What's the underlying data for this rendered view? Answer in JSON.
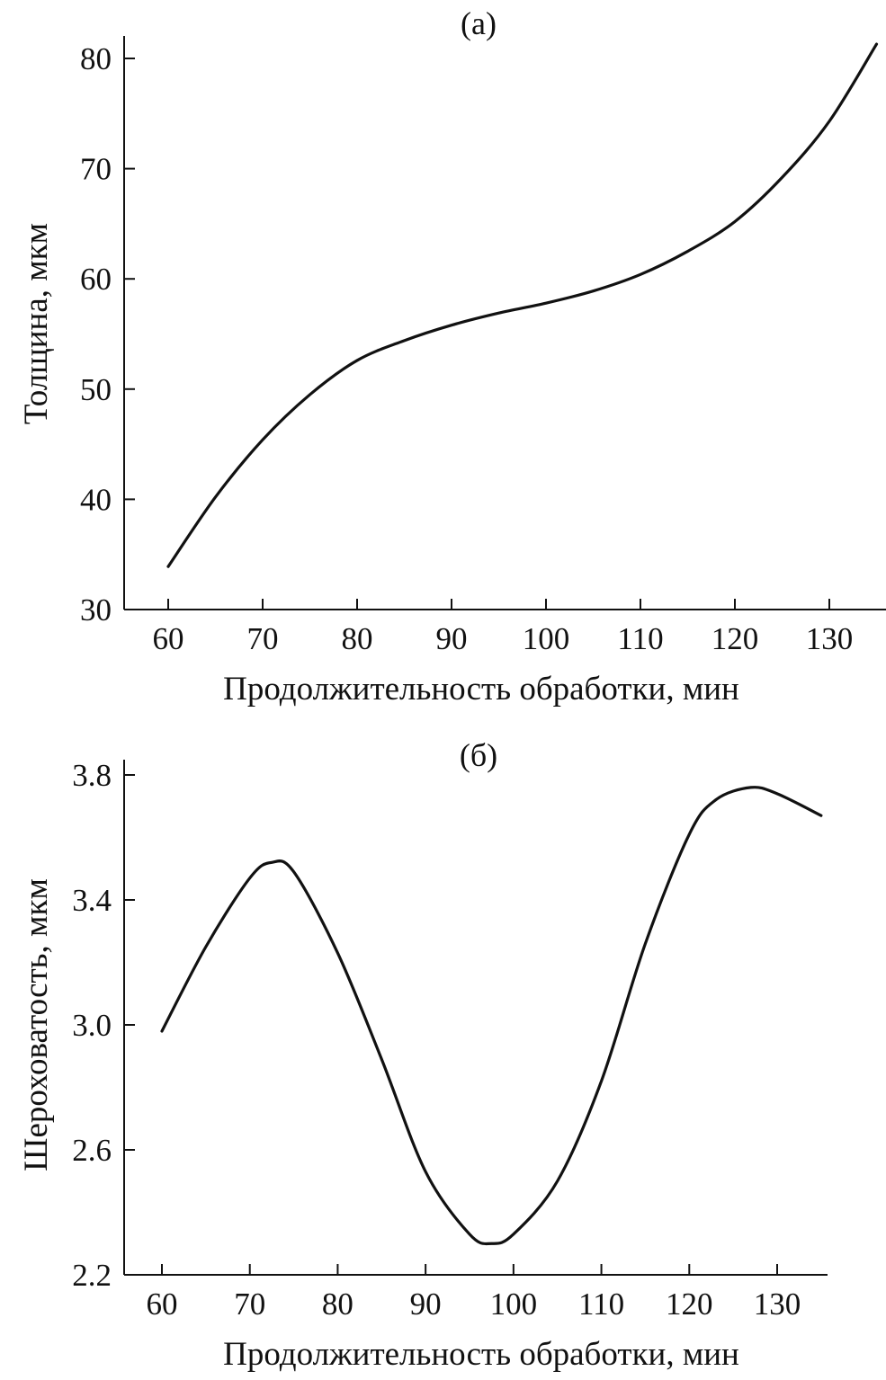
{
  "chart_data": [
    {
      "type": "line",
      "title": "(а)",
      "xlabel": "Продолжительность обработки, мин",
      "ylabel": "Толщина, мкм",
      "xlim": [
        55,
        135
      ],
      "ylim": [
        30,
        82
      ],
      "xticks": [
        60,
        70,
        80,
        90,
        100,
        110,
        120,
        130
      ],
      "yticks": [
        30,
        40,
        50,
        60,
        70,
        80
      ],
      "grid": false,
      "series": [
        {
          "name": "thickness",
          "x": [
            60,
            65,
            70,
            75,
            80,
            85,
            90,
            95,
            100,
            105,
            110,
            115,
            120,
            125,
            130,
            135
          ],
          "y": [
            33.9,
            40.2,
            45.4,
            49.5,
            52.6,
            54.4,
            55.8,
            56.9,
            57.8,
            58.9,
            60.4,
            62.5,
            65.2,
            69.2,
            74.3,
            81.3
          ]
        }
      ]
    },
    {
      "type": "line",
      "title": "(б)",
      "xlabel": "Продолжительность обработки, мин",
      "ylabel": "Шероховатость, мкм",
      "xlim": [
        55,
        138
      ],
      "ylim": [
        2.2,
        3.85
      ],
      "xticks": [
        60,
        70,
        80,
        90,
        100,
        110,
        120,
        130
      ],
      "yticks": [
        "2.2",
        "2.6",
        "3.0",
        "3.4",
        "3.8"
      ],
      "grid": false,
      "series": [
        {
          "name": "roughness",
          "x": [
            60,
            65,
            70,
            72.5,
            75,
            80,
            85,
            90,
            95,
            97.5,
            100,
            105,
            110,
            115,
            120,
            123,
            127,
            130,
            135
          ],
          "y": [
            2.98,
            3.25,
            3.47,
            3.52,
            3.49,
            3.23,
            2.89,
            2.53,
            2.33,
            2.3,
            2.33,
            2.5,
            2.82,
            3.26,
            3.61,
            3.72,
            3.76,
            3.74,
            3.67
          ]
        }
      ]
    }
  ]
}
